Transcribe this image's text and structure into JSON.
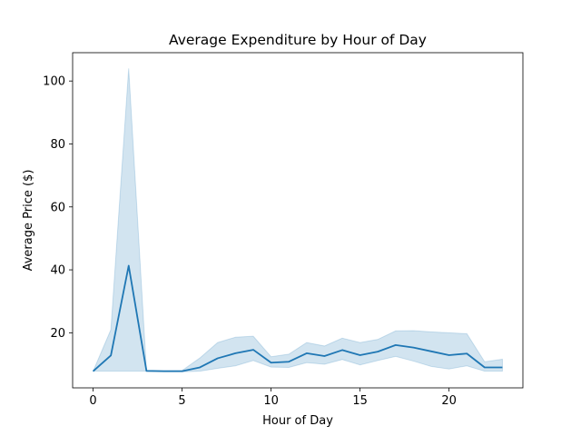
{
  "chart_data": {
    "type": "line",
    "title": "Average Expenditure by Hour of Day",
    "xlabel": "Hour of Day",
    "ylabel": "Average Price ($)",
    "xlim": [
      -1.15,
      24.15
    ],
    "ylim": [
      2.5,
      109
    ],
    "xticks": [
      0,
      5,
      10,
      15,
      20
    ],
    "yticks": [
      20,
      40,
      60,
      80,
      100
    ],
    "grid": false,
    "legend": "none",
    "line_color": "#1f77b4",
    "band_color": "#1f77b4",
    "series": [
      {
        "x": [
          0,
          1,
          2,
          3,
          4,
          5,
          6,
          7,
          8,
          9,
          10,
          11,
          12,
          13,
          14,
          15,
          16,
          17,
          18,
          19,
          20,
          21,
          22,
          23
        ],
        "values": [
          7.8,
          12.8,
          41.3,
          7.9,
          7.8,
          7.8,
          9.0,
          11.9,
          13.5,
          14.6,
          10.5,
          10.8,
          13.5,
          12.6,
          14.5,
          12.9,
          14.0,
          16.1,
          15.3,
          14.1,
          12.9,
          13.4,
          9.0,
          9.0
        ],
        "ci_low": [
          7.8,
          7.8,
          7.8,
          7.8,
          7.6,
          7.6,
          7.8,
          8.7,
          9.5,
          11.2,
          9.1,
          9.0,
          10.5,
          10.0,
          11.5,
          9.8,
          11.2,
          12.5,
          11.0,
          9.3,
          8.5,
          9.5,
          7.8,
          7.8
        ],
        "ci_high": [
          7.8,
          21.0,
          104.0,
          7.9,
          7.9,
          8.0,
          12.0,
          16.9,
          18.6,
          18.9,
          12.4,
          13.2,
          16.9,
          15.8,
          18.3,
          16.9,
          17.9,
          20.6,
          20.7,
          20.3,
          20.0,
          19.7,
          10.8,
          11.6
        ]
      }
    ]
  }
}
